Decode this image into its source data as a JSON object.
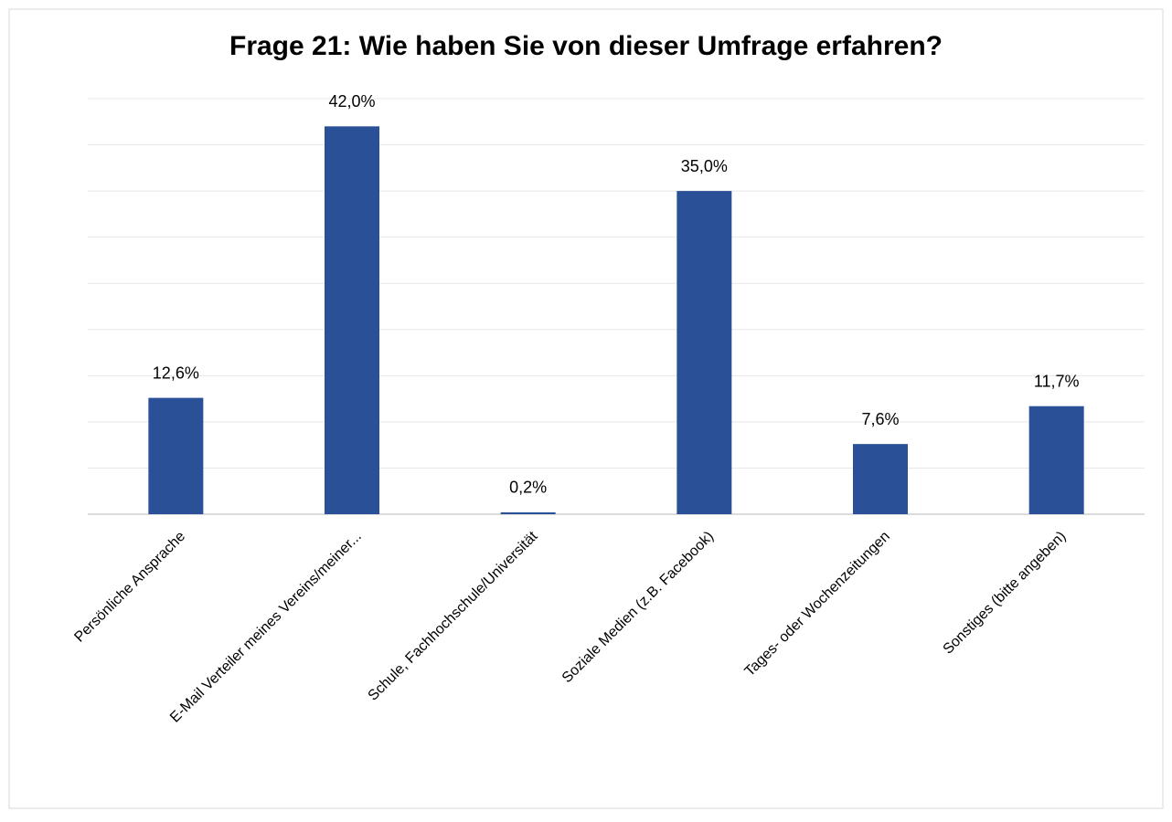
{
  "chart_data": {
    "type": "bar",
    "title": "Frage 21: Wie haben Sie von dieser Umfrage erfahren?",
    "categories": [
      "Persönliche Ansprache",
      "E-Mail Verteiler meines Vereins/meiner...",
      "Schule, Fachhochschule/Universität",
      "Soziale Medien (z.B. Facebook)",
      "Tages- oder Wochenzeitungen",
      "Sonstiges (bitte angeben)"
    ],
    "values": [
      12.6,
      42.0,
      0.2,
      35.0,
      7.6,
      11.7
    ],
    "value_labels": [
      "12,6%",
      "42,0%",
      "0,2%",
      "35,0%",
      "7,6%",
      "11,7%"
    ],
    "color": "#2a5198",
    "ylim": [
      0,
      45
    ],
    "yticks": [
      0,
      5,
      10,
      15,
      20,
      25,
      30,
      35,
      40,
      45
    ],
    "grid": true
  }
}
